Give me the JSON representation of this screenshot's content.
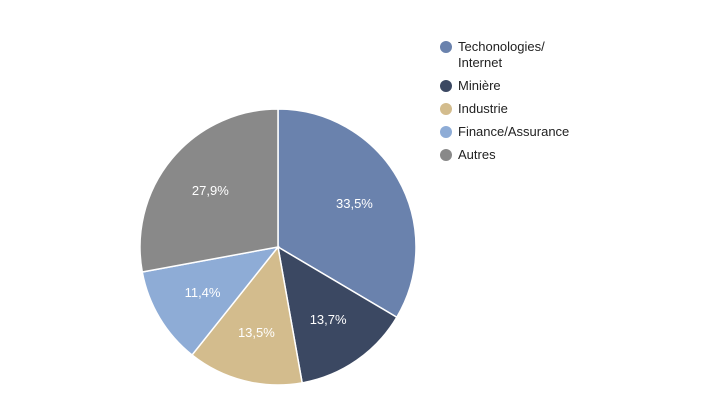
{
  "chart_data": {
    "type": "pie",
    "title": "",
    "categories": [
      "Techonologies/ Internet",
      "Minière",
      "Industrie",
      "Finance/Assurance",
      "Autres"
    ],
    "values": [
      33.5,
      13.7,
      13.5,
      11.4,
      27.9
    ],
    "labels": [
      "33,5%",
      "13,7%",
      "13,5%",
      "11,4%",
      "27,9%"
    ],
    "colors": [
      "#6a82ad",
      "#3b4862",
      "#d3bc8d",
      "#8eacd6",
      "#898989"
    ],
    "legend_position": "right",
    "start_angle": "top",
    "direction": "clockwise"
  }
}
